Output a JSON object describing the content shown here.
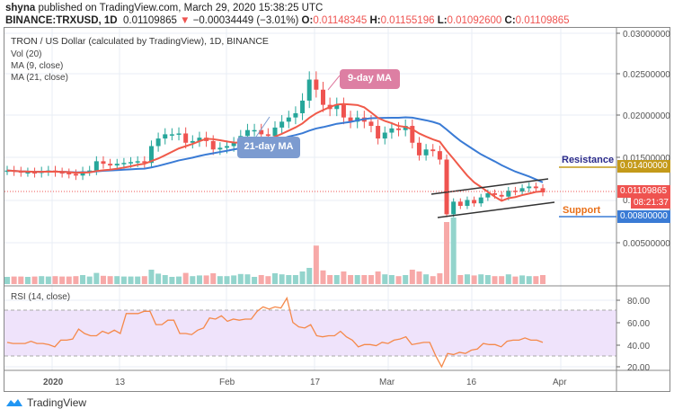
{
  "header": {
    "author": "shyna",
    "published": "published on TradingView.com, March 29, 2020 15:38:25 UTC",
    "symbol": "BINANCE:TRXUSD, 1D",
    "last": "0.01109865",
    "change": "−0.00034449 (−3.01%)",
    "o_label": "O:",
    "o": "0.01148345",
    "h_label": "H:",
    "h": "0.01155196",
    "l_label": "L:",
    "l": "0.01092600",
    "c_label": "C:",
    "c": "0.01109865"
  },
  "legend": {
    "title": "TRON / US Dollar (calculated by TradingView), 1D, BINANCE",
    "vol": "Vol (20)",
    "ma9": "MA (9, close)",
    "ma21": "MA (21, close)",
    "rsi": "RSI (14, close)"
  },
  "annotations": {
    "ma9_label": "9-day MA",
    "ma21_label": "21-day MA",
    "resistance": "Resistance",
    "support": "Support",
    "resistance_price": "0.01400000",
    "support_price": "0.00800000",
    "last_price": "0.01109865",
    "countdown": "08:21:37"
  },
  "colors": {
    "up": "#26a69a",
    "down": "#ef5350",
    "ma9": "#f05a4a",
    "ma21": "#3a7bd5",
    "resistance": "#c49a1a",
    "support": "#3a7bd5",
    "rsi": "#f5894a",
    "rsi_band": "#efe3fb"
  },
  "footer": {
    "brand": "TradingView"
  },
  "chart_data": [
    {
      "type": "line",
      "title": "TRON / US Dollar (calculated by TradingView), 1D, BINANCE",
      "subtype": "candlestick",
      "x_ticks": [
        "2020",
        "13",
        "Feb",
        "17",
        "Mar",
        "16",
        "Apr"
      ],
      "y_ticks": [
        "0.03000000",
        "0.02500000",
        "0.02000000",
        "0.01500000",
        "0.00500000"
      ],
      "ylim": [
        0.0,
        0.03
      ],
      "series": [
        {
          "name": "Close (approx.)",
          "values": [
            0.0137,
            0.0136,
            0.0135,
            0.0135,
            0.0134,
            0.0136,
            0.0137,
            0.0135,
            0.0134,
            0.0133,
            0.0131,
            0.0136,
            0.0137,
            0.0148,
            0.0145,
            0.0143,
            0.0145,
            0.0146,
            0.0147,
            0.0148,
            0.0146,
            0.0166,
            0.0175,
            0.018,
            0.018,
            0.0181,
            0.017,
            0.0172,
            0.0176,
            0.0172,
            0.0162,
            0.0164,
            0.0166,
            0.017,
            0.0178,
            0.0185,
            0.0185,
            0.018,
            0.0178,
            0.0188,
            0.0195,
            0.02,
            0.0205,
            0.022,
            0.0245,
            0.0233,
            0.0215,
            0.021,
            0.0215,
            0.02,
            0.0195,
            0.02,
            0.0195,
            0.019,
            0.0175,
            0.0182,
            0.0187,
            0.0185,
            0.019,
            0.017,
            0.0155,
            0.0162,
            0.016,
            0.015,
            0.0085,
            0.01,
            0.0095,
            0.0102,
            0.0098,
            0.0105,
            0.011,
            0.0108,
            0.0106,
            0.0113,
            0.0112,
            0.0116,
            0.0118,
            0.0116,
            0.0111
          ]
        },
        {
          "name": "MA (9, close)",
          "values_note": "red line, peaks ~0.0233 mid-Feb, bottoms ~0.0103 mid-Mar"
        },
        {
          "name": "MA (21, close)",
          "values_note": "blue line, peaks ~0.0218 late Feb, declines to ~0.0112"
        }
      ],
      "levels": [
        {
          "name": "Resistance",
          "value": 0.014
        },
        {
          "name": "Support",
          "value": 0.008
        },
        {
          "name": "Last",
          "value": 0.01109865
        }
      ]
    },
    {
      "type": "bar",
      "title": "Vol (20)",
      "note": "largest spike around March 13, secondary peaks early/mid Feb"
    },
    {
      "type": "line",
      "title": "RSI (14, close)",
      "y_ticks": [
        "80.00",
        "60.00",
        "40.00",
        "20.00"
      ],
      "ylim": [
        10,
        90
      ],
      "band": [
        30,
        70
      ],
      "values": [
        42,
        41,
        41,
        41,
        43,
        41,
        41,
        40,
        38,
        44,
        44,
        45,
        54,
        50,
        48,
        48,
        52,
        50,
        53,
        50,
        68,
        68,
        68,
        70,
        70,
        58,
        58,
        62,
        62,
        50,
        50,
        49,
        53,
        55,
        64,
        63,
        66,
        61,
        63,
        62,
        63,
        63,
        70,
        74,
        72,
        74,
        73,
        82,
        60,
        56,
        55,
        58,
        48,
        47,
        48,
        48,
        52,
        47,
        44,
        38,
        40,
        40,
        39,
        42,
        41,
        44,
        45,
        47,
        40,
        41,
        42,
        42,
        30,
        20,
        32,
        31,
        33,
        32,
        35,
        36,
        41,
        40,
        40,
        38,
        43,
        44,
        44,
        46,
        44,
        44,
        42
      ]
    }
  ]
}
